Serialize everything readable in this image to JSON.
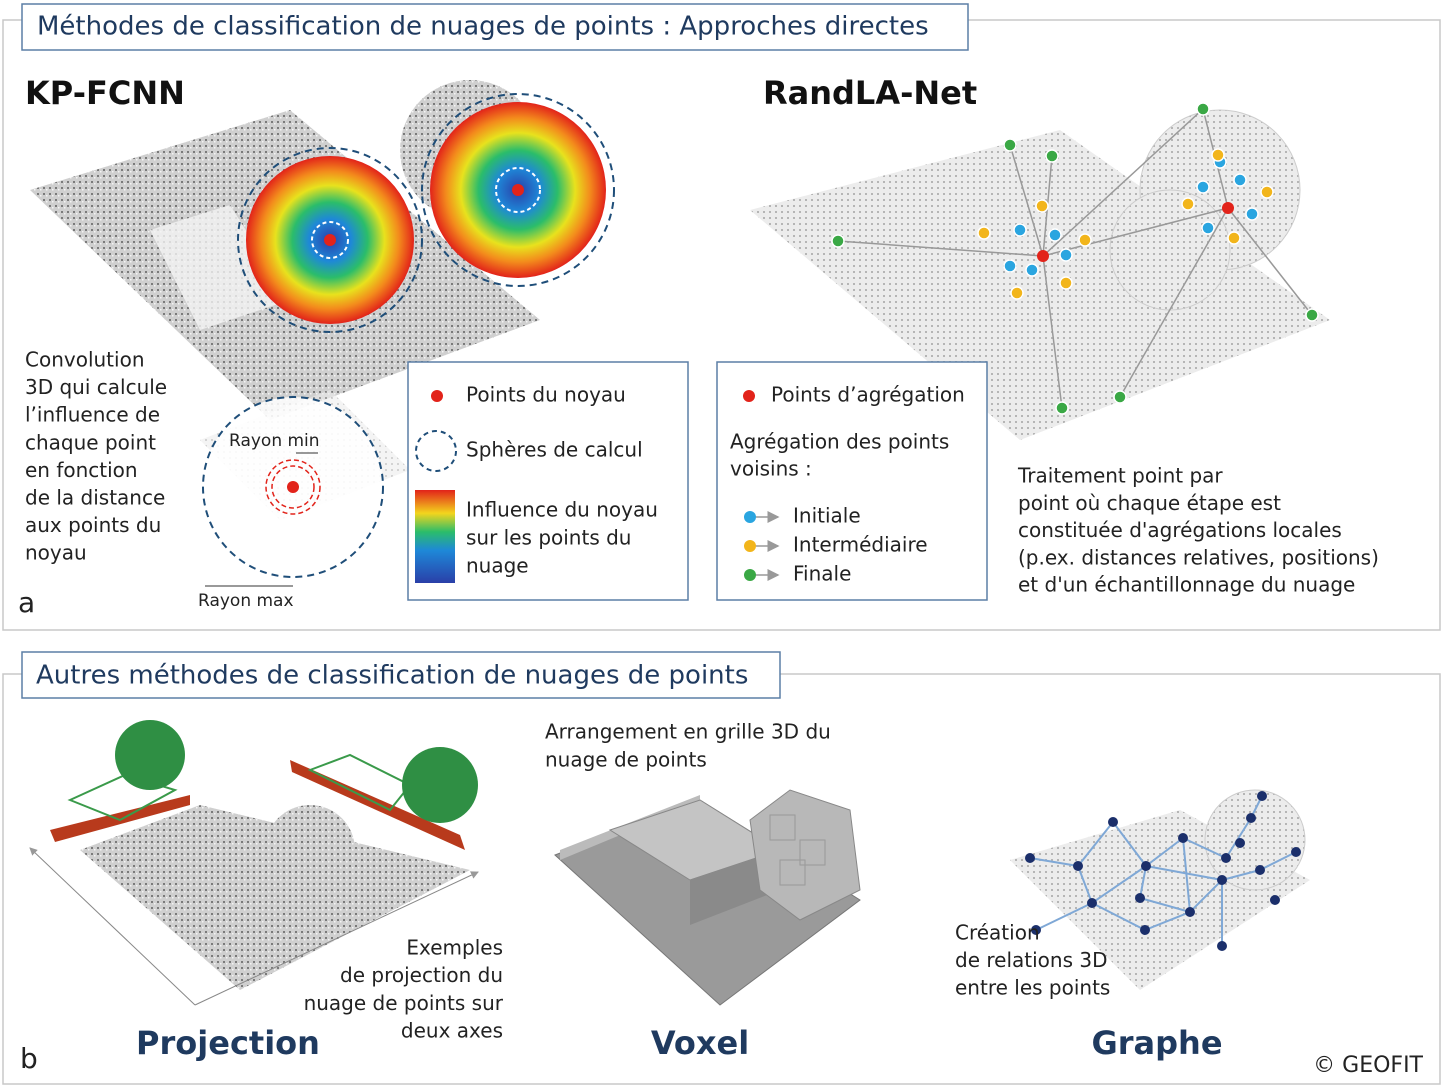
{
  "panel_a": {
    "title": "Méthodes de classification de nuages de points : Approches directes",
    "label": "a",
    "kpfcnn": {
      "title": "KP-FCNN",
      "description": [
        "Convolution",
        "3D qui calcule",
        "l’influence de",
        "chaque point",
        "en fonction",
        "de la distance",
        "aux points du",
        "noyau"
      ],
      "rayon_min": "Rayon min",
      "rayon_max": "Rayon max"
    },
    "kernel_legend": {
      "points": "Points du noyau",
      "spheres": "Sphères de calcul",
      "influence": [
        "Influence du noyau",
        "sur les points du",
        "nuage"
      ]
    },
    "randla": {
      "title": "RandLA-Net",
      "description": [
        "Traitement point par",
        "point où chaque étape est",
        "constituée d'agrégations locales",
        "(p.ex. distances relatives, positions)",
        "et d'un échantillonnage du nuage"
      ]
    },
    "aggregation_legend": {
      "points": "Points d’agrégation",
      "heading": [
        "Agrégation des points",
        "voisins :"
      ],
      "initiale": "Initiale",
      "intermediaire": "Intermédiaire",
      "finale": "Finale"
    }
  },
  "panel_b": {
    "title": "Autres méthodes de classification de nuages de points",
    "label": "b",
    "projection": {
      "caption": [
        "Exemples",
        "de projection du",
        "nuage de points sur",
        "deux axes"
      ],
      "name": "Projection"
    },
    "voxel": {
      "caption": [
        "Arrangement en grille 3D du",
        "nuage de points"
      ],
      "name": "Voxel"
    },
    "graphe": {
      "caption": [
        "Création",
        "de relations 3D",
        "entre les points"
      ],
      "name": "Graphe"
    }
  },
  "copyright": "© GEOFIT"
}
